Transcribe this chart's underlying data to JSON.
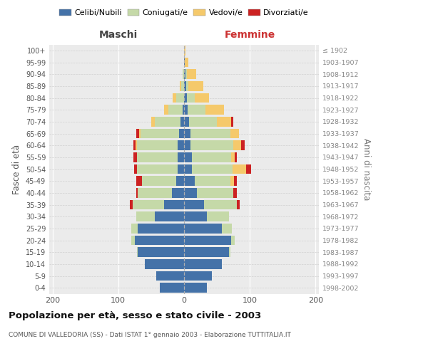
{
  "age_groups": [
    "0-4",
    "5-9",
    "10-14",
    "15-19",
    "20-24",
    "25-29",
    "30-34",
    "35-39",
    "40-44",
    "45-49",
    "50-54",
    "55-59",
    "60-64",
    "65-69",
    "70-74",
    "75-79",
    "80-84",
    "85-89",
    "90-94",
    "95-99",
    "100+"
  ],
  "birth_years": [
    "1998-2002",
    "1993-1997",
    "1988-1992",
    "1983-1987",
    "1978-1982",
    "1973-1977",
    "1968-1972",
    "1963-1967",
    "1958-1962",
    "1953-1957",
    "1948-1952",
    "1943-1947",
    "1938-1942",
    "1933-1937",
    "1928-1932",
    "1923-1927",
    "1918-1922",
    "1913-1917",
    "1908-1912",
    "1903-1907",
    "≤ 1902"
  ],
  "maschi_celibi": [
    37,
    42,
    60,
    70,
    75,
    70,
    45,
    30,
    18,
    12,
    10,
    10,
    10,
    8,
    5,
    2,
    0,
    0,
    0,
    0,
    0
  ],
  "maschi_coniugati": [
    0,
    0,
    0,
    2,
    5,
    10,
    28,
    48,
    52,
    52,
    62,
    62,
    62,
    58,
    40,
    22,
    12,
    4,
    2,
    0,
    0
  ],
  "maschi_vedovi": [
    0,
    0,
    0,
    0,
    0,
    0,
    0,
    0,
    0,
    0,
    0,
    0,
    2,
    2,
    5,
    6,
    5,
    2,
    0,
    0,
    0
  ],
  "maschi_divorziati": [
    0,
    0,
    0,
    0,
    0,
    0,
    0,
    4,
    3,
    9,
    4,
    5,
    3,
    5,
    0,
    0,
    0,
    0,
    0,
    0,
    0
  ],
  "femmine_celibi": [
    35,
    42,
    57,
    68,
    72,
    58,
    35,
    30,
    20,
    16,
    12,
    12,
    10,
    10,
    8,
    5,
    4,
    3,
    2,
    1,
    0
  ],
  "femmine_coniugati": [
    0,
    0,
    0,
    2,
    5,
    15,
    33,
    50,
    55,
    55,
    62,
    60,
    65,
    60,
    42,
    28,
    12,
    4,
    2,
    0,
    0
  ],
  "femmine_vedovi": [
    0,
    0,
    0,
    0,
    0,
    0,
    0,
    0,
    0,
    5,
    20,
    5,
    12,
    14,
    22,
    28,
    22,
    22,
    14,
    5,
    2
  ],
  "femmine_divorziati": [
    0,
    0,
    0,
    0,
    0,
    0,
    0,
    5,
    5,
    4,
    8,
    3,
    5,
    0,
    3,
    0,
    0,
    0,
    0,
    0,
    0
  ],
  "colors": {
    "celibi": "#4472a8",
    "coniugati": "#c5d9a8",
    "vedovi": "#f5c96b",
    "divorziati": "#cc2222"
  },
  "legend_labels": [
    "Celibi/Nubili",
    "Coniugati/e",
    "Vedovi/e",
    "Divorziati/e"
  ],
  "title": "Popolazione per età, sesso e stato civile - 2003",
  "subtitle": "COMUNE DI VALLEDORIA (SS) - Dati ISTAT 1° gennaio 2003 - Elaborazione TUTTITALIA.IT",
  "xlabel_left": "Maschi",
  "xlabel_right": "Femmine",
  "ylabel_left": "Fasce di età",
  "ylabel_right": "Anni di nascita",
  "xlim": 205,
  "xticks": [
    -200,
    -100,
    0,
    100,
    200
  ],
  "background_color": "#ffffff",
  "plot_bg_color": "#ebebeb"
}
